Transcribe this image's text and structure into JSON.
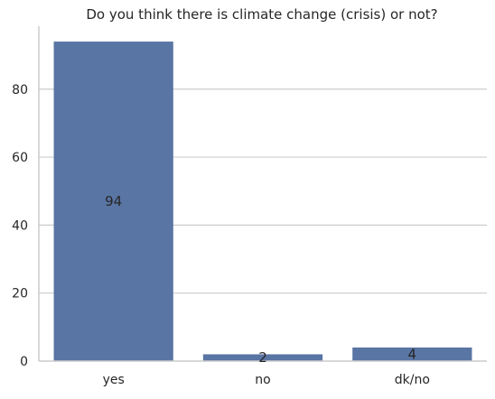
{
  "chart_data": {
    "type": "bar",
    "title": "Do you think there is climate change (crisis) or not?",
    "xlabel": "",
    "ylabel": "",
    "categories": [
      "yes",
      "no",
      "dk/no"
    ],
    "values": [
      94,
      2,
      4
    ],
    "data_labels": [
      "94",
      "2",
      "4"
    ],
    "ylim": [
      0,
      98
    ],
    "yticks": [
      0,
      20,
      40,
      60,
      80
    ],
    "ytick_labels": [
      "0",
      "20",
      "40",
      "60",
      "80"
    ],
    "grid": "horizontal",
    "bar_color": "#5975a4",
    "grid_color": "#cccccc",
    "axis_color": "#cccccc"
  }
}
